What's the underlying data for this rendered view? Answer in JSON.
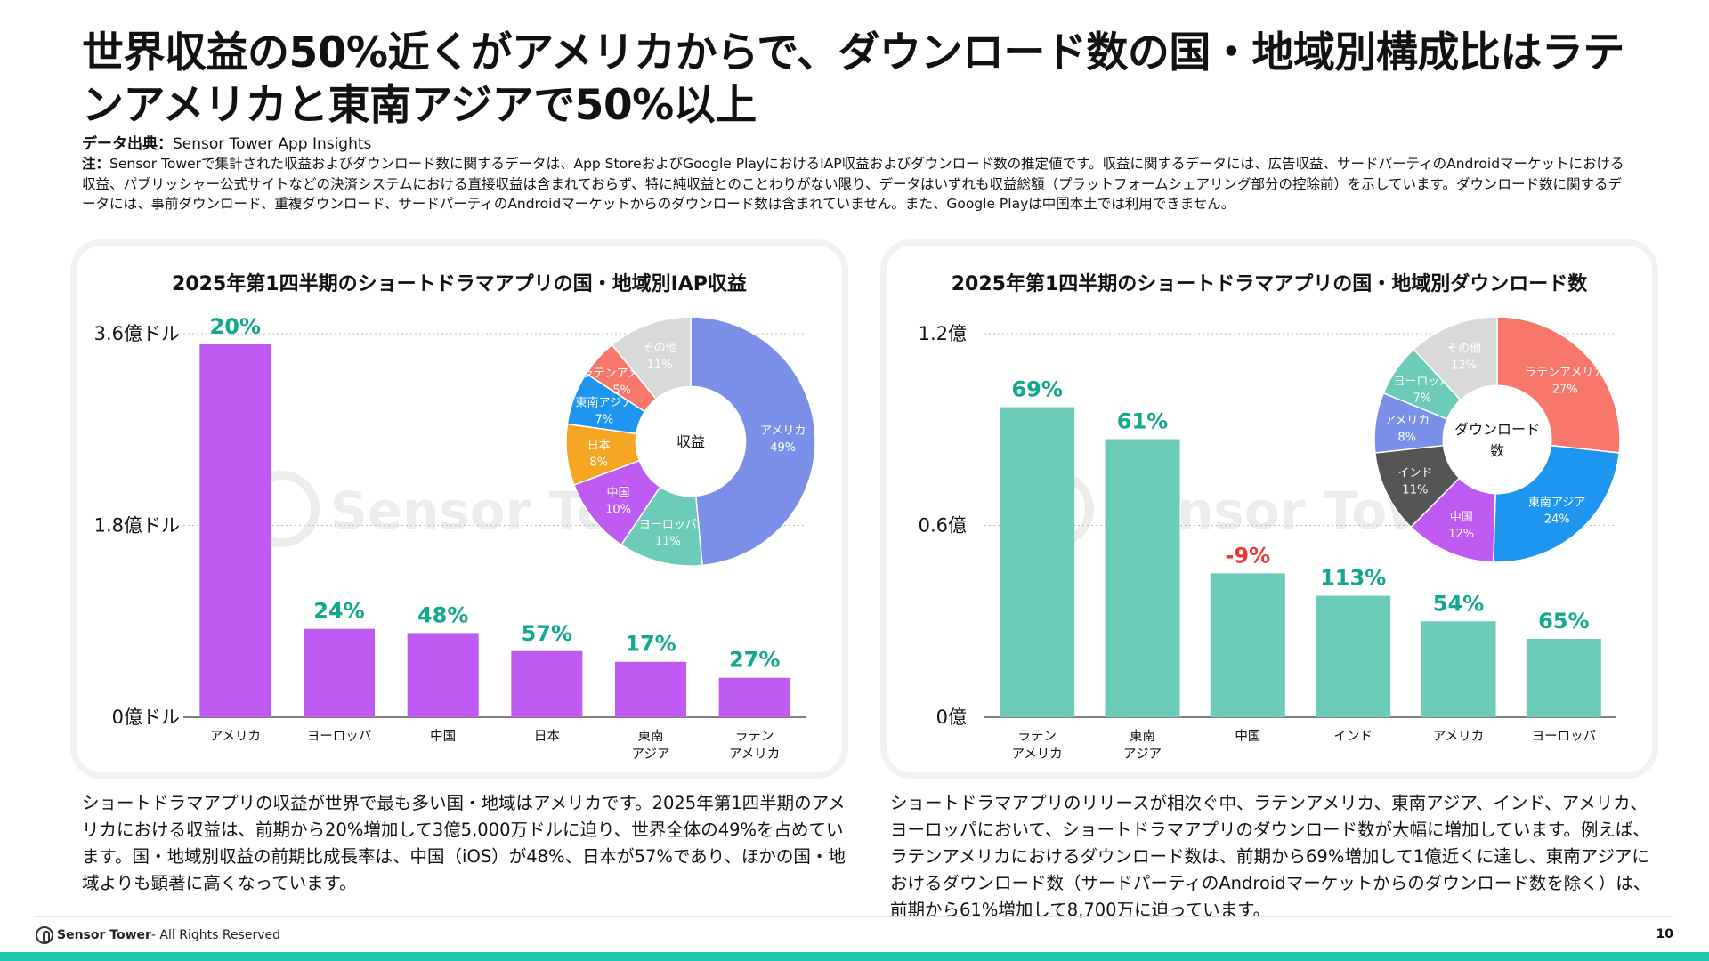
{
  "title": "世界収益の50%近くがアメリカからで、ダウンロード数の国・地域別構成比はラテンアメリカと東南アジアで50%以上",
  "source": {
    "label": "データ出典：",
    "value": "Sensor Tower App Insights"
  },
  "note": {
    "label": "注：",
    "text": "Sensor Towerで集計された収益およびダウンロード数に関するデータは、App StoreおよびGoogle PlayにおけるIAP収益およびダウンロード数の推定値です。収益に関するデータには、広告収益、サードパーティのAndroidマーケットにおける収益、パブリッシャー公式サイトなどの決済システムにおける直接収益は含まれておらず、特に純収益とのことわりがない限り、データはいずれも収益総額（プラットフォームシェアリング部分の控除前）を示しています。ダウンロード数に関するデータには、事前ダウンロード、重複ダウンロード、サードパーティのAndroidマーケットからのダウンロード数は含まれていません。また、Google Playは中国本土では利用できません。"
  },
  "colors": {
    "bar_left": "#bf5af2",
    "bar_right": "#6ccbb9",
    "growth_pos": "#12a88e",
    "growth_neg": "#e53935"
  },
  "watermark": "Sensor Tower",
  "chart_data": [
    {
      "type": "bar",
      "title": "2025年第1四半期のショートドラマアプリの国・地域別IAP収益",
      "categories": [
        [
          "アメリカ"
        ],
        [
          "ヨーロッパ"
        ],
        [
          "中国"
        ],
        [
          "日本"
        ],
        [
          "東南",
          "アジア"
        ],
        [
          "ラテン",
          "アメリカ"
        ]
      ],
      "values": [
        3.5,
        0.83,
        0.79,
        0.62,
        0.52,
        0.37
      ],
      "growth_labels": [
        "20%",
        "24%",
        "48%",
        "57%",
        "17%",
        "27%"
      ],
      "yticks": [
        {
          "value": 0,
          "label": "0億ドル"
        },
        {
          "value": 1.8,
          "label": "1.8億ドル"
        },
        {
          "value": 3.6,
          "label": "3.6億ドル"
        }
      ],
      "ylim": [
        0,
        3.6
      ],
      "donut": {
        "center_label": [
          "収益"
        ],
        "slices": [
          {
            "name": "アメリカ",
            "value": 49,
            "label": "49%",
            "color": "#7b8fe8"
          },
          {
            "name": "ヨーロッパ",
            "value": 11,
            "label": "11%",
            "color": "#6ccbb9"
          },
          {
            "name": "中国",
            "value": 10,
            "label": "10%",
            "color": "#bf5af2"
          },
          {
            "name": "日本",
            "value": 8,
            "label": "8%",
            "color": "#f5a623"
          },
          {
            "name": "東南アジア",
            "value": 7,
            "label": "7%",
            "color": "#1e96f0"
          },
          {
            "name": "ラテンアメリカ",
            "value": 5,
            "label": "5%",
            "color": "#f7776a"
          },
          {
            "name": "その他",
            "value": 11,
            "label": "11%",
            "color": "#d9d9d9"
          }
        ]
      }
    },
    {
      "type": "bar",
      "title": "2025年第1四半期のショートドラマアプリの国・地域別ダウンロード数",
      "categories": [
        [
          "ラテン",
          "アメリカ"
        ],
        [
          "東南",
          "アジア"
        ],
        [
          "中国"
        ],
        [
          "インド"
        ],
        [
          "アメリカ"
        ],
        [
          "ヨーロッパ"
        ]
      ],
      "values": [
        0.97,
        0.87,
        0.45,
        0.38,
        0.3,
        0.245
      ],
      "growth_labels": [
        "69%",
        "61%",
        "-9%",
        "113%",
        "54%",
        "65%"
      ],
      "yticks": [
        {
          "value": 0,
          "label": "0億"
        },
        {
          "value": 0.6,
          "label": "0.6億"
        },
        {
          "value": 1.2,
          "label": "1.2億"
        }
      ],
      "ylim": [
        0,
        1.2
      ],
      "donut": {
        "center_label": [
          "ダウンロード",
          "数"
        ],
        "slices": [
          {
            "name": "ラテンアメリカ",
            "value": 27,
            "label": "27%",
            "color": "#f7776a"
          },
          {
            "name": "東南アジア",
            "value": 24,
            "label": "24%",
            "color": "#1e96f0"
          },
          {
            "name": "中国",
            "value": 12,
            "label": "12%",
            "color": "#bf5af2"
          },
          {
            "name": "インド",
            "value": 11,
            "label": "11%",
            "color": "#555555"
          },
          {
            "name": "アメリカ",
            "value": 8,
            "label": "8%",
            "color": "#7b8fe8"
          },
          {
            "name": "ヨーロッパ",
            "value": 7,
            "label": "7%",
            "color": "#6ccbb9"
          },
          {
            "name": "その他",
            "value": 12,
            "label": "12%",
            "color": "#d9d9d9"
          }
        ]
      }
    }
  ],
  "body_left": "ショートドラマアプリの収益が世界で最も多い国・地域はアメリカです。2025年第1四半期のアメリカにおける収益は、前期から20%増加して3億5,000万ドルに迫り、世界全体の49%を占めています。国・地域別収益の前期比成長率は、中国（iOS）が48%、日本が57%であり、ほかの国・地域よりも顕著に高くなっています。",
  "body_right": "ショートドラマアプリのリリースが相次ぐ中、ラテンアメリカ、東南アジア、インド、アメリカ、ヨーロッパにおいて、ショートドラマアプリのダウンロード数が大幅に増加しています。例えば、ラテンアメリカにおけるダウンロード数は、前期から69%増加して1億近くに達し、東南アジアにおけるダウンロード数（サードパーティのAndroidマーケットからのダウンロード数を除く）は、前期から61%増加して8,700万に迫っています。",
  "footer": {
    "brand": "Sensor Tower",
    "rights": " - All Rights Reserved",
    "page": "10"
  }
}
